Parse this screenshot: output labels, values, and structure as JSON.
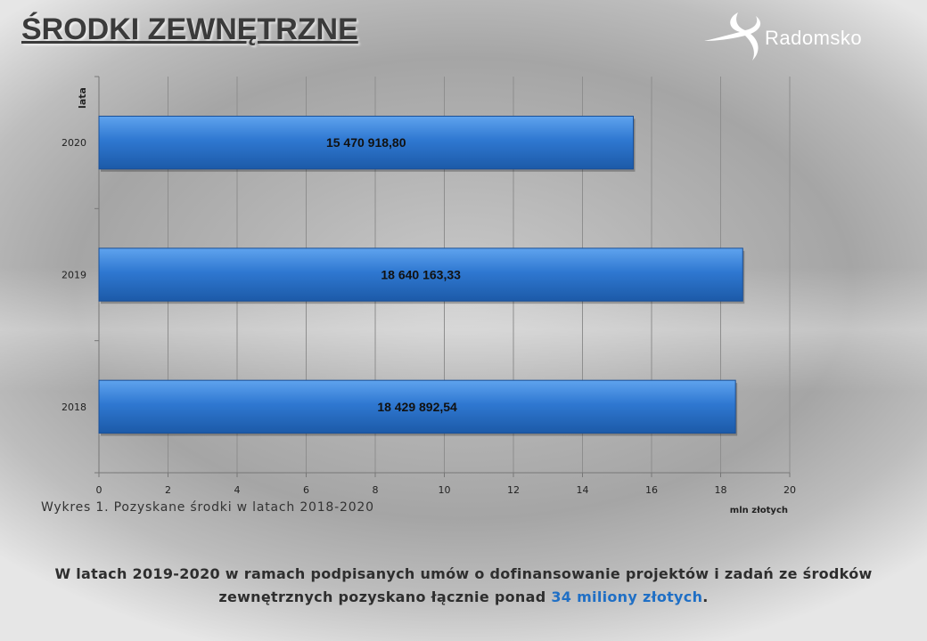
{
  "header": {
    "title": "ŚRODKI ZEWNĘTRZNE",
    "logo_text": "Radomsko"
  },
  "chart_data": {
    "type": "bar",
    "orientation": "horizontal",
    "categories": [
      "2020",
      "2019",
      "2018"
    ],
    "series": [
      {
        "values": [
          15.4709188,
          18.64016333,
          18.42989254
        ],
        "data_labels": [
          "15 470 918,80",
          "18 640 163,33",
          "18 429 892,54"
        ]
      }
    ],
    "x_ticks": [
      "0",
      "2",
      "4",
      "6",
      "8",
      "10",
      "12",
      "14",
      "16",
      "18",
      "20"
    ],
    "xlim": [
      0,
      20
    ],
    "xlabel": "mln złotych",
    "ylabel": "lata",
    "grid": true,
    "bar_color": "#2f78d1"
  },
  "caption": "Wykres 1. Pozyskane środki w latach 2018-2020",
  "summary": {
    "line1": "W latach 2019-2020 w ramach podpisanych umów o dofinansowanie projektów i zadań ze środków",
    "line2_prefix": "zewnętrznych pozyskano łącznie ponad ",
    "line2_highlight": "34 miliony złotych",
    "line2_suffix": "."
  }
}
